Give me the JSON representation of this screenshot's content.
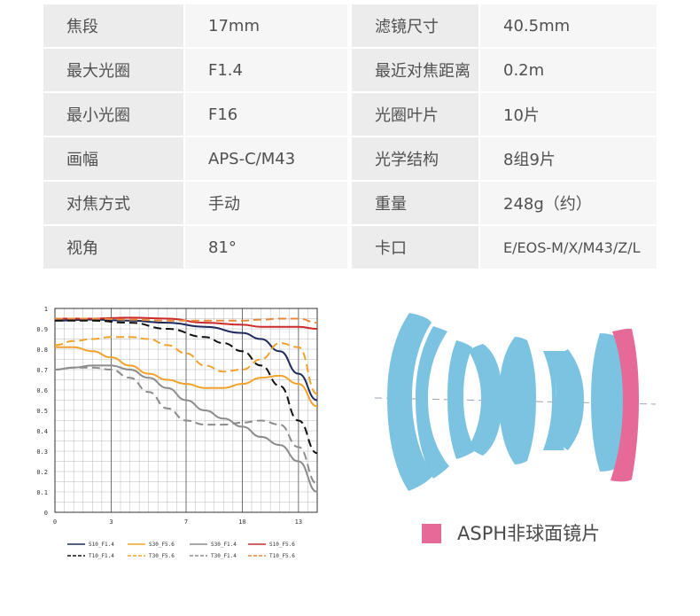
{
  "specs": {
    "rows": [
      {
        "label1": "焦段",
        "value1": "17mm",
        "label2": "滤镜尺寸",
        "value2": "40.5mm"
      },
      {
        "label1": "最大光圈",
        "value1": "F1.4",
        "label2": "最近对焦距离",
        "value2": "0.2m"
      },
      {
        "label1": "最小光圈",
        "value1": "F16",
        "label2": "光圈叶片",
        "value2": "10片"
      },
      {
        "label1": "画幅",
        "value1": "APS-C/M43",
        "label2": "光学结构",
        "value2": "8组9片"
      },
      {
        "label1": "对焦方式",
        "value1": "手动",
        "label2": "重量",
        "value2": "248g（约）"
      },
      {
        "label1": "视角",
        "value1": "81°",
        "label2": "卡口",
        "value2": "E/EOS-M/X/M43/Z/L"
      }
    ]
  },
  "chart_data": {
    "type": "line",
    "xlim": [
      0,
      14
    ],
    "ylim": [
      0,
      1
    ],
    "x_ticks": [
      "0",
      "3",
      "7",
      "10",
      "13"
    ],
    "x_tick_values": [
      0,
      3,
      7,
      10,
      13
    ],
    "y_ticks": [
      "0",
      "0.1",
      "0.2",
      "0.3",
      "0.4",
      "0.5",
      "0.6",
      "0.7",
      "0.8",
      "0.9",
      "1"
    ],
    "grid": true,
    "legend_position": "bottom",
    "series": [
      {
        "name": "S10_F1.4",
        "color": "#1f2a5c",
        "dash": false,
        "x": [
          0,
          2,
          4,
          6,
          8,
          10,
          11,
          12,
          13,
          14
        ],
        "y": [
          0.94,
          0.945,
          0.94,
          0.93,
          0.91,
          0.88,
          0.85,
          0.79,
          0.68,
          0.55
        ]
      },
      {
        "name": "T10_F1.4",
        "color": "#111111",
        "dash": true,
        "x": [
          0,
          2,
          4,
          6,
          8,
          9,
          10,
          11,
          12,
          13,
          14
        ],
        "y": [
          0.94,
          0.94,
          0.93,
          0.9,
          0.86,
          0.83,
          0.79,
          0.72,
          0.62,
          0.45,
          0.29
        ]
      },
      {
        "name": "S30_F5.6",
        "color": "#f2a22a",
        "dash": false,
        "x": [
          0,
          1,
          2,
          3,
          4,
          5,
          6,
          7,
          8,
          9,
          10,
          11,
          12,
          13,
          14
        ],
        "y": [
          0.81,
          0.81,
          0.79,
          0.76,
          0.72,
          0.68,
          0.65,
          0.63,
          0.61,
          0.61,
          0.63,
          0.66,
          0.67,
          0.63,
          0.52
        ]
      },
      {
        "name": "T30_F5.6",
        "color": "#f2a22a",
        "dash": true,
        "x": [
          0,
          1,
          2,
          3,
          4,
          5,
          6,
          7,
          8,
          9,
          10,
          11,
          12,
          13,
          14
        ],
        "y": [
          0.82,
          0.84,
          0.85,
          0.86,
          0.86,
          0.85,
          0.82,
          0.78,
          0.72,
          0.69,
          0.7,
          0.75,
          0.83,
          0.81,
          0.58
        ]
      },
      {
        "name": "S30_F1.4",
        "color": "#8c8c8c",
        "dash": false,
        "x": [
          0,
          1,
          2,
          3,
          4,
          5,
          6,
          7,
          8,
          9,
          10,
          11,
          12,
          13,
          14
        ],
        "y": [
          0.7,
          0.71,
          0.72,
          0.72,
          0.7,
          0.66,
          0.61,
          0.55,
          0.5,
          0.46,
          0.42,
          0.37,
          0.33,
          0.25,
          0.1
        ]
      },
      {
        "name": "T30_F1.4",
        "color": "#8c8c8c",
        "dash": true,
        "x": [
          0,
          1,
          2,
          3,
          4,
          5,
          6,
          7,
          8,
          9,
          10,
          11,
          12,
          13,
          14
        ],
        "y": [
          0.7,
          0.71,
          0.71,
          0.7,
          0.66,
          0.59,
          0.51,
          0.45,
          0.43,
          0.43,
          0.44,
          0.45,
          0.43,
          0.32,
          0.14
        ]
      },
      {
        "name": "S10_F5.6",
        "color": "#cc2a2a",
        "dash": false,
        "x": [
          0,
          2,
          4,
          6,
          8,
          10,
          11,
          12,
          13,
          14
        ],
        "y": [
          0.95,
          0.95,
          0.955,
          0.95,
          0.93,
          0.92,
          0.91,
          0.91,
          0.91,
          0.9
        ]
      },
      {
        "name": "T10_F5.6",
        "color": "#e88a3a",
        "dash": true,
        "x": [
          0,
          2,
          4,
          6,
          8,
          10,
          11,
          12,
          13,
          14
        ],
        "y": [
          0.95,
          0.95,
          0.945,
          0.94,
          0.94,
          0.94,
          0.945,
          0.95,
          0.95,
          0.93
        ]
      }
    ]
  },
  "lens_diagram": {
    "asph_color": "#e66a98",
    "element_color": "#7cc3e2",
    "legend_label": "ASPH非球面镜片"
  }
}
